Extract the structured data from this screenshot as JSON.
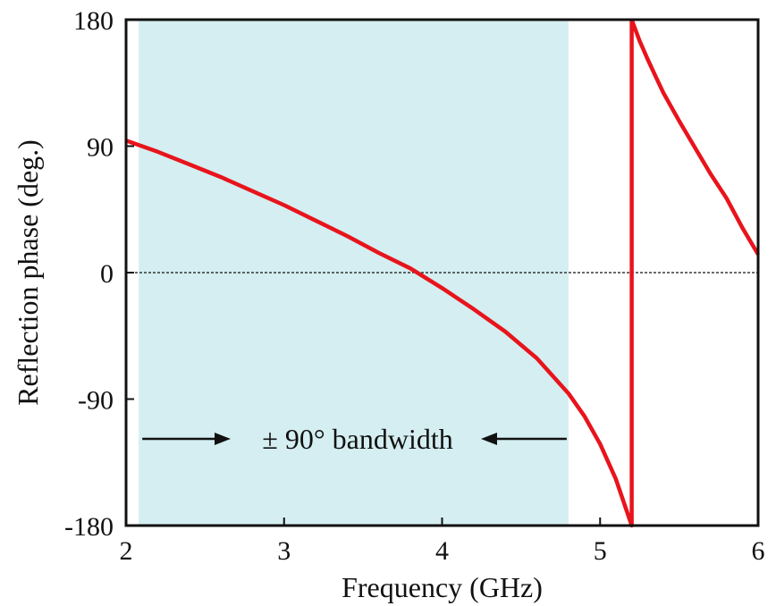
{
  "chart_data": {
    "type": "line",
    "title": "",
    "xlabel": "Frequency (GHz)",
    "ylabel": "Reflection phase (deg.)",
    "xlim": [
      2,
      6
    ],
    "ylim": [
      -180,
      180
    ],
    "x_ticks": [
      2,
      3,
      4,
      5,
      6
    ],
    "y_ticks": [
      -180,
      -90,
      0,
      90,
      180
    ],
    "x_tick_labels": [
      "2",
      "3",
      "4",
      "5",
      "6"
    ],
    "y_tick_labels": [
      "-180",
      "-90",
      "0",
      "90",
      "180"
    ],
    "grid": false,
    "reference_line": {
      "y": 0,
      "style": "dotted"
    },
    "band": {
      "x_start": 2.08,
      "x_end": 4.8,
      "color": "#d4eef1"
    },
    "annotation": {
      "text": "± 90° bandwidth",
      "arrows": "inward-pointing arrows from both band edges"
    },
    "series": [
      {
        "color": "#e8141c",
        "segments": [
          {
            "x": [
              2.0,
              2.2,
              2.4,
              2.6,
              2.8,
              3.0,
              3.2,
              3.4,
              3.6,
              3.8,
              3.9,
              4.0,
              4.2,
              4.4,
              4.6,
              4.8,
              4.9,
              5.0,
              5.1,
              5.2
            ],
            "y": [
              94,
              86,
              77,
              68,
              58,
              48,
              37,
              26,
              14,
              3,
              -4,
              -11,
              -26,
              -42,
              -61,
              -86,
              -102,
              -122,
              -147,
              -180
            ]
          },
          {
            "x": [
              5.2,
              5.25,
              5.3,
              5.35,
              5.4,
              5.5,
              5.6,
              5.7,
              5.8,
              5.9,
              6.0
            ],
            "y": [
              180,
              165,
              152,
              140,
              128,
              108,
              89,
              70,
              53,
              32,
              13
            ]
          }
        ]
      }
    ]
  }
}
